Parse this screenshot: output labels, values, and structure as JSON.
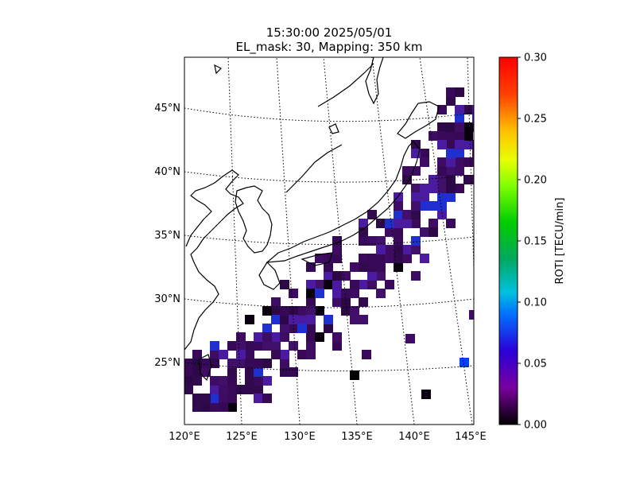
{
  "title": {
    "line1": "15:30:00 2025/05/01",
    "line2": "EL_mask: 30, Mapping: 350 km"
  },
  "map": {
    "lon_ticks": [
      "120°E",
      "125°E",
      "130°E",
      "135°E",
      "140°E",
      "145°E"
    ],
    "lat_ticks": [
      "25°N",
      "30°N",
      "35°N",
      "40°N",
      "45°N"
    ],
    "lon_range": [
      120,
      145
    ],
    "lat_range": [
      20,
      49
    ],
    "graticule": "dotted",
    "coastlines": "black"
  },
  "colorbar": {
    "label": "ROTI [TECU/min]",
    "ticks": [
      "0.00",
      "0.05",
      "0.10",
      "0.15",
      "0.20",
      "0.25",
      "0.30"
    ],
    "range": [
      0.0,
      0.3
    ],
    "colormap": "nipy_spectral"
  },
  "chart_data": {
    "type": "heatmap",
    "value_name": "ROTI",
    "unit": "TECU/min",
    "typical_value": 0.03,
    "max_values_observed": [
      0.06,
      0.055
    ],
    "note_colors": {
      "dominant": "#3a0a5a",
      "low": "#0a0010",
      "high": "#0040ff"
    }
  }
}
